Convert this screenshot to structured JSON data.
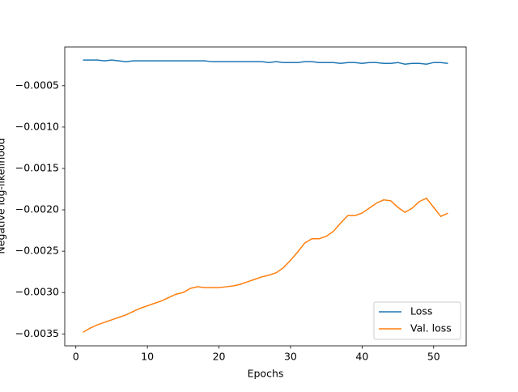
{
  "chart_data": {
    "type": "line",
    "xlabel": "Epochs",
    "ylabel": "Negative log-likelihood",
    "x": [
      1,
      2,
      3,
      4,
      5,
      6,
      7,
      8,
      9,
      10,
      11,
      12,
      13,
      14,
      15,
      16,
      17,
      18,
      19,
      20,
      21,
      22,
      23,
      24,
      25,
      26,
      27,
      28,
      29,
      30,
      31,
      32,
      33,
      34,
      35,
      36,
      37,
      38,
      39,
      40,
      41,
      42,
      43,
      44,
      45,
      46,
      47,
      48,
      49,
      50,
      51,
      52
    ],
    "series": [
      {
        "name": "Loss",
        "color": "#1f77b4",
        "values": [
          -0.00019,
          -0.00019,
          -0.00019,
          -0.0002,
          -0.00019,
          -0.0002,
          -0.00021,
          -0.0002,
          -0.0002,
          -0.0002,
          -0.0002,
          -0.0002,
          -0.0002,
          -0.0002,
          -0.0002,
          -0.0002,
          -0.0002,
          -0.0002,
          -0.00021,
          -0.00021,
          -0.00021,
          -0.00021,
          -0.00021,
          -0.00021,
          -0.00021,
          -0.00021,
          -0.00022,
          -0.00021,
          -0.00022,
          -0.00022,
          -0.00022,
          -0.00021,
          -0.00021,
          -0.00022,
          -0.00022,
          -0.00022,
          -0.00023,
          -0.00022,
          -0.00022,
          -0.00023,
          -0.00022,
          -0.00022,
          -0.00023,
          -0.00023,
          -0.00022,
          -0.00024,
          -0.00023,
          -0.00023,
          -0.00024,
          -0.00022,
          -0.00022,
          -0.00023
        ]
      },
      {
        "name": "Val. loss",
        "color": "#ff7f0e",
        "values": [
          -0.00348,
          -0.00343,
          -0.00339,
          -0.00336,
          -0.00333,
          -0.0033,
          -0.00327,
          -0.00323,
          -0.00319,
          -0.00316,
          -0.00313,
          -0.0031,
          -0.00306,
          -0.00302,
          -0.003,
          -0.00295,
          -0.00293,
          -0.00294,
          -0.00294,
          -0.00294,
          -0.00293,
          -0.00292,
          -0.0029,
          -0.00287,
          -0.00284,
          -0.00281,
          -0.00279,
          -0.00276,
          -0.0027,
          -0.00261,
          -0.00251,
          -0.0024,
          -0.00235,
          -0.00235,
          -0.00232,
          -0.00226,
          -0.00216,
          -0.00207,
          -0.00207,
          -0.00204,
          -0.00198,
          -0.00192,
          -0.00188,
          -0.00189,
          -0.00197,
          -0.00203,
          -0.00198,
          -0.0019,
          -0.00186,
          -0.00197,
          -0.00208,
          -0.00204
        ]
      }
    ],
    "xlim": [
      -1.55,
      54.55
    ],
    "xticks": [
      0,
      10,
      20,
      30,
      40,
      50
    ],
    "ylim": [
      -0.003644,
      -3.2e-05
    ],
    "yticks": [
      {
        "value": -0.0035,
        "label": "−0.0035"
      },
      {
        "value": -0.003,
        "label": "−0.0030"
      },
      {
        "value": -0.0025,
        "label": "−0.0025"
      },
      {
        "value": -0.002,
        "label": "−0.0020"
      },
      {
        "value": -0.0015,
        "label": "−0.0015"
      },
      {
        "value": -0.001,
        "label": "−0.0010"
      },
      {
        "value": -0.0005,
        "label": "−0.0005"
      }
    ],
    "legend": "lower right"
  }
}
